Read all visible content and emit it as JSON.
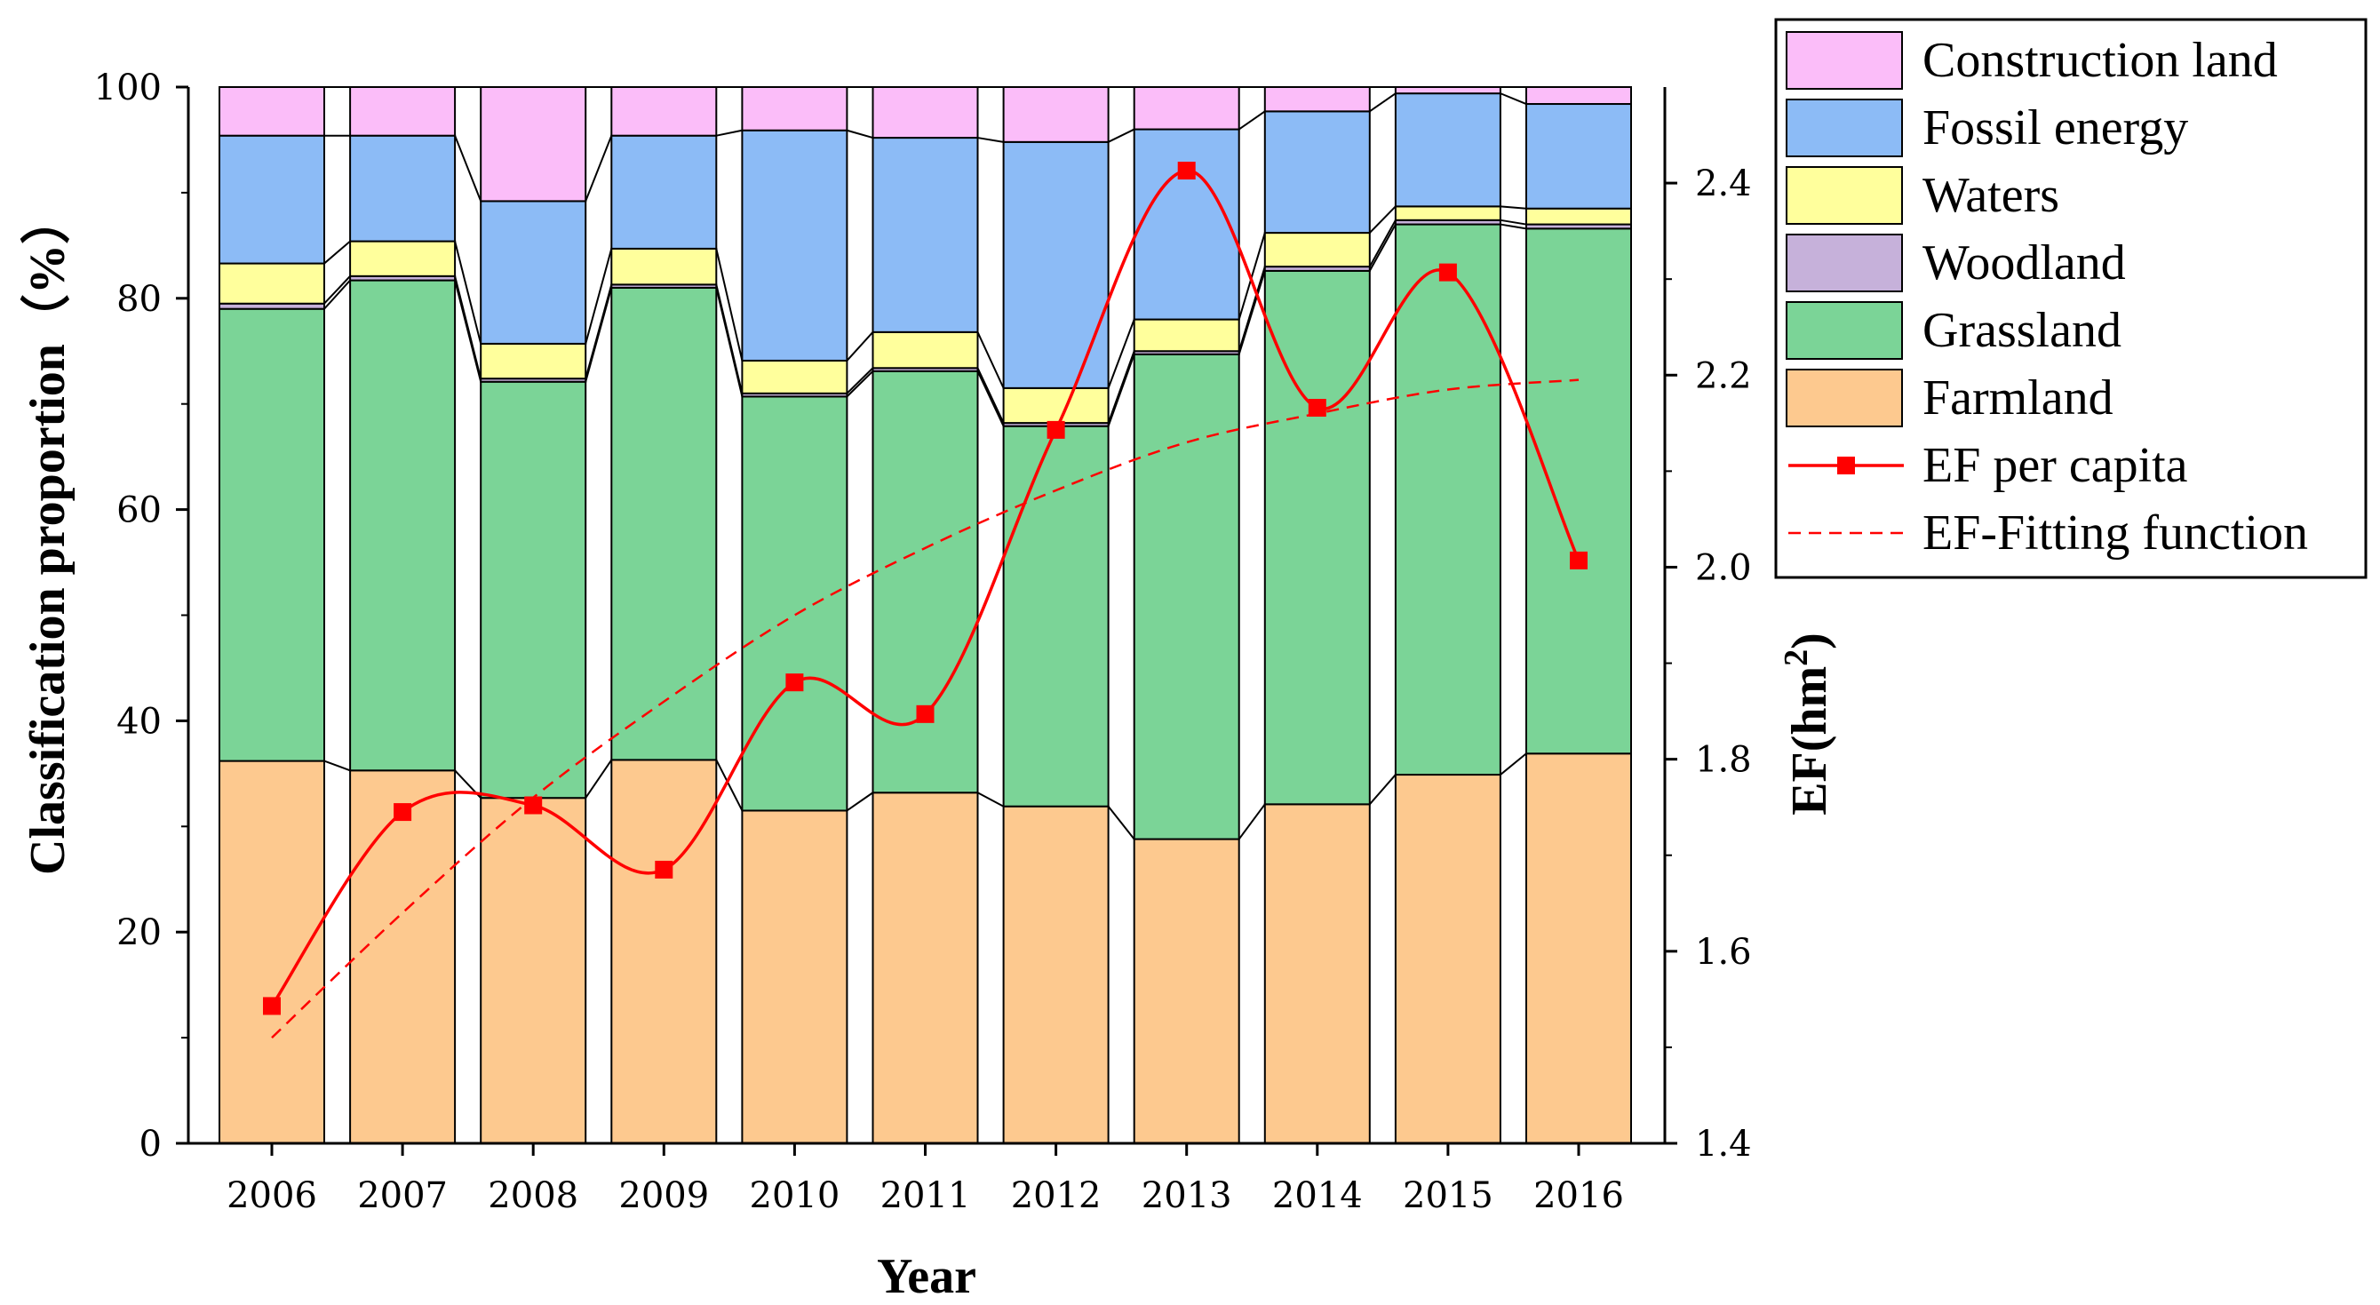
{
  "chart_data": {
    "type": "bar",
    "stacked": true,
    "title": "",
    "xlabel": "Year",
    "ylabel": "Classification proportion（%）",
    "y2label": "EF(hm²)",
    "ylim": [
      0,
      100
    ],
    "y2lim": [
      1.4,
      2.5
    ],
    "y_ticks": [
      "0",
      "20",
      "40",
      "60",
      "80",
      "100"
    ],
    "y2_ticks": [
      "1.4",
      "1.6",
      "1.8",
      "2.0",
      "2.2",
      "2.4"
    ],
    "categories": [
      "2006",
      "2007",
      "2008",
      "2009",
      "2010",
      "2011",
      "2012",
      "2013",
      "2014",
      "2015",
      "2016"
    ],
    "series": [
      {
        "name": "Farmland",
        "color": "#FDC98F",
        "values": [
          36.2,
          35.3,
          32.7,
          36.3,
          31.5,
          33.2,
          31.9,
          28.8,
          32.1,
          34.9,
          36.9
        ]
      },
      {
        "name": "Grassland",
        "color": "#7BD497",
        "values": [
          42.8,
          46.4,
          39.4,
          44.7,
          39.2,
          39.9,
          36.0,
          45.9,
          50.5,
          52.1,
          49.7
        ]
      },
      {
        "name": "Woodland",
        "color": "#C6B1DA",
        "values": [
          0.5,
          0.4,
          0.3,
          0.3,
          0.3,
          0.3,
          0.3,
          0.3,
          0.4,
          0.4,
          0.4
        ]
      },
      {
        "name": "Waters",
        "color": "#FFFF9C",
        "values": [
          3.8,
          3.3,
          3.3,
          3.4,
          3.1,
          3.4,
          3.3,
          3.0,
          3.2,
          1.3,
          1.5
        ]
      },
      {
        "name": "Fossil energy",
        "color": "#8CBBF6",
        "values": [
          12.1,
          10.0,
          13.5,
          10.7,
          21.8,
          18.4,
          23.3,
          18.0,
          11.5,
          10.7,
          9.9
        ]
      },
      {
        "name": "Construction land",
        "color": "#FBBDF9",
        "values": [
          4.6,
          4.6,
          10.8,
          4.6,
          4.1,
          4.8,
          5.2,
          4.0,
          2.3,
          0.6,
          1.6
        ]
      }
    ],
    "lines": [
      {
        "name": "EF per capita",
        "color": "#FF0000",
        "axis": "right",
        "marker": "square",
        "values": [
          1.543,
          1.745,
          1.752,
          1.685,
          1.88,
          1.847,
          2.143,
          2.413,
          2.166,
          2.307,
          2.007
        ]
      },
      {
        "name": "EF-Fitting function",
        "color": "#FF0000",
        "axis": "right",
        "dashed": true,
        "values": [
          1.51,
          1.64,
          1.76,
          1.86,
          1.95,
          2.02,
          2.08,
          2.13,
          2.16,
          2.185,
          2.195
        ]
      }
    ],
    "legend": [
      "Construction land",
      "Fossil energy",
      "Waters",
      "Woodland",
      "Grassland",
      "Farmland",
      "EF per capita",
      "EF-Fitting function"
    ],
    "legend_position": "top-right-outside"
  }
}
